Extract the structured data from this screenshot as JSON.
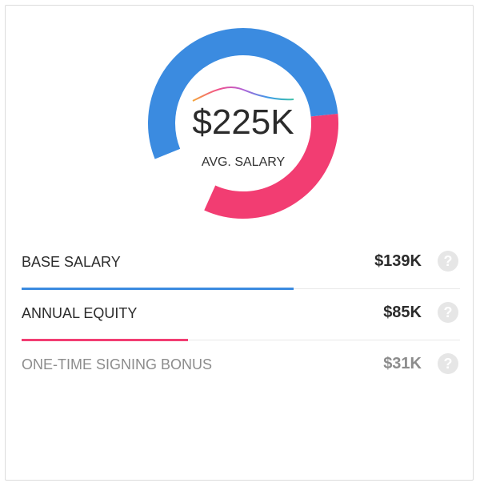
{
  "summary": {
    "amount": "$225K",
    "label": "AVG. SALARY"
  },
  "chart_data": {
    "type": "pie",
    "categories": [
      "BASE SALARY",
      "ANNUAL EQUITY",
      "ONE-TIME SIGNING BONUS"
    ],
    "values": [
      139,
      85,
      31
    ],
    "units": "$K",
    "total": 225,
    "colors": [
      "#3b8be0",
      "#f23d72",
      "#ffffff"
    ]
  },
  "rows": [
    {
      "label": "BASE SALARY",
      "value": "$139K",
      "bar_fraction": 0.62,
      "bar_color": "#3b8be0",
      "help": "?"
    },
    {
      "label": "ANNUAL EQUITY",
      "value": "$85K",
      "bar_fraction": 0.38,
      "bar_color": "#f23d72",
      "help": "?"
    },
    {
      "label": "ONE-TIME SIGNING BONUS",
      "value": "$31K",
      "bar_fraction": 0,
      "bar_color": "#cccccc",
      "help": "?"
    }
  ],
  "colors": {
    "text": "#2b2b2b",
    "muted": "#8c8c8c",
    "divider": "#e8e8e8"
  }
}
